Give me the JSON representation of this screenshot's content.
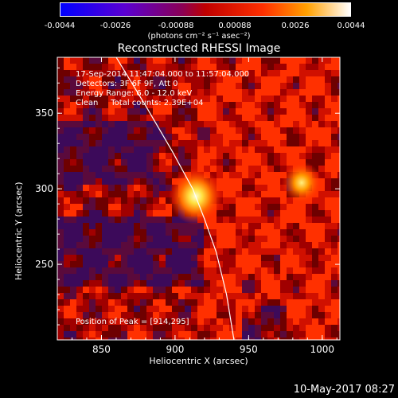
{
  "colors": {
    "background": "#000000",
    "axis": "#ffffff"
  },
  "colorbar": {
    "ticks": [
      "-0.0044",
      "-0.0026",
      "-0.00088",
      "0.00088",
      "0.0026",
      "0.0044"
    ],
    "unit_label": "(photons cm⁻² s⁻¹ asec⁻²)",
    "range": [
      -0.0044,
      0.0044
    ],
    "colormap": "rhessi-color-table"
  },
  "chart_data": {
    "type": "heatmap",
    "title": "Reconstructed RHESSI Image",
    "xlabel": "Heliocentric X (arcsec)",
    "ylabel": "Heliocentric Y (arcsec)",
    "xlim": [
      820,
      1012
    ],
    "ylim": [
      200,
      387
    ],
    "xticks": [
      "850",
      "900",
      "950",
      "1000"
    ],
    "xtick_values": [
      850,
      900,
      950,
      1000
    ],
    "yticks": [
      "250",
      "300",
      "350"
    ],
    "ytick_values": [
      250,
      300,
      350
    ],
    "annotations": [
      "17-Sep-2014 11:47:04.000 to 11:57:04.000",
      "Detectors: 3F 6F 9F, Att 0",
      "Energy Range: 6.0 - 12.0 keV",
      "Clean     Total counts: 2.39E+04"
    ],
    "peak_label": "Position of Peak = [914,295]",
    "sources": [
      {
        "x": 914,
        "y": 295,
        "amplitude": 1.0
      },
      {
        "x": 986,
        "y": 304,
        "amplitude": 0.75
      }
    ],
    "limb_curve": [
      [
        860,
        387
      ],
      [
        880,
        355
      ],
      [
        898,
        325
      ],
      [
        912,
        300
      ],
      [
        920,
        280
      ],
      [
        928,
        258
      ],
      [
        935,
        230
      ],
      [
        940,
        200
      ]
    ]
  },
  "footer": {
    "timestamp": "10-May-2017 08:27"
  }
}
